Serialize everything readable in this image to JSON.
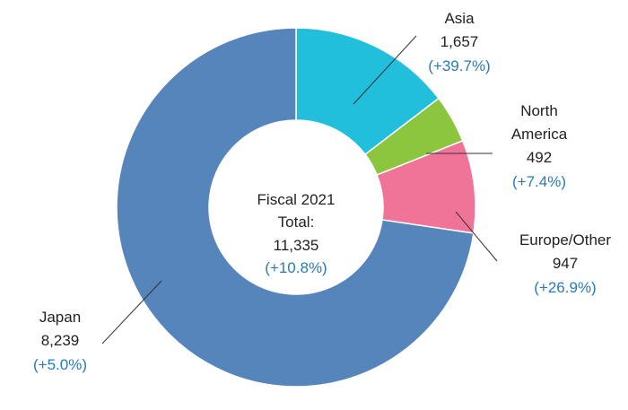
{
  "chart_data": {
    "type": "pie",
    "style": "donut",
    "center": {
      "line1": "Fiscal 2021",
      "line2": "Total:",
      "total": "11,335",
      "change": "(+10.8%)"
    },
    "slices": [
      {
        "key": "asia",
        "name": "Asia",
        "value": 1657,
        "value_label": "1,657",
        "change": "(+39.7%)",
        "color": "#22bfdc"
      },
      {
        "key": "north_america",
        "name_lines": [
          "North",
          "America"
        ],
        "value": 492,
        "value_label": "492",
        "change": "(+7.4%)",
        "color": "#8cc63f"
      },
      {
        "key": "europe_other",
        "name": "Europe/Other",
        "value": 947,
        "value_label": "947",
        "change": "(+26.9%)",
        "color": "#f07398"
      },
      {
        "key": "japan",
        "name": "Japan",
        "value": 8239,
        "value_label": "8,239",
        "change": "(+5.0%)",
        "color": "#5585bb"
      }
    ],
    "start_angle": "12 o'clock",
    "direction": "clockwise",
    "colors": {
      "label": "#222222",
      "change": "#2a7ab8",
      "leader": "#333333"
    }
  }
}
